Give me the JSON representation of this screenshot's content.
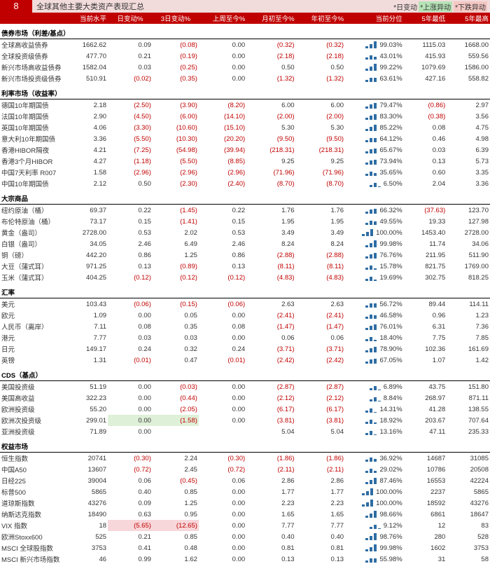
{
  "block_number": "8",
  "title": "全球其他主要大类资产表现汇总",
  "legend": {
    "day": "*日变动",
    "up": "*上涨异动",
    "down": "*下跌异动"
  },
  "headers": [
    "当前水平",
    "日变动%",
    "3日变动%",
    "上周至今%",
    "月初至今%",
    "年初至今%",
    "当前分位",
    "5年最低",
    "5年最高"
  ],
  "spark_color": "#2e6da4",
  "sections": [
    {
      "name": "债券市场（利差/基点）",
      "rows": [
        {
          "n": "全球高收益债券",
          "v": [
            "1662.62",
            "0.09",
            "(0.08)",
            "0.00",
            "(0.32)",
            "(0.32)",
            "99.03%",
            "1115.03",
            "1668.00"
          ],
          "move": ""
        },
        {
          "n": "全球投资级债券",
          "v": [
            "477.70",
            "0.21",
            "(0.19)",
            "0.00",
            "(2.18)",
            "(2.18)",
            "43.01%",
            "415.93",
            "559.56"
          ],
          "move": ""
        },
        {
          "n": "新兴市场高收益债券",
          "v": [
            "1582.04",
            "0.03",
            "(0.25)",
            "0.00",
            "0.50",
            "0.50",
            "99.22%",
            "1079.69",
            "1586.00"
          ],
          "move": ""
        },
        {
          "n": "新兴市场投资级债券",
          "v": [
            "510.91",
            "(0.02)",
            "(0.35)",
            "0.00",
            "(1.32)",
            "(1.32)",
            "63.61%",
            "427.16",
            "558.82"
          ],
          "move": ""
        }
      ]
    },
    {
      "name": "利率市场（收益率）",
      "rows": [
        {
          "n": "德国10年期国债",
          "v": [
            "2.18",
            "(2.50)",
            "(3.90)",
            "(8.20)",
            "6.00",
            "6.00",
            "79.47%",
            "(0.86)",
            "2.97"
          ],
          "move": ""
        },
        {
          "n": "法国10年期国债",
          "v": [
            "2.90",
            "(4.50)",
            "(6.00)",
            "(14.10)",
            "(2.00)",
            "(2.00)",
            "83.30%",
            "(0.38)",
            "3.56"
          ],
          "move": ""
        },
        {
          "n": "英国10年期国债",
          "v": [
            "4.06",
            "(3.30)",
            "(10.60)",
            "(15.10)",
            "5.30",
            "5.30",
            "85.22%",
            "0.08",
            "4.75"
          ],
          "move": ""
        },
        {
          "n": "意大利10年期国债",
          "v": [
            "3.36",
            "(5.50)",
            "(10.30)",
            "(20.20)",
            "(9.50)",
            "(9.50)",
            "64.12%",
            "0.46",
            "4.98"
          ],
          "move": ""
        },
        {
          "n": "香港HIBOR隔夜",
          "v": [
            "4.21",
            "(7.25)",
            "(54.98)",
            "(39.94)",
            "(218.31)",
            "(218.31)",
            "65.67%",
            "0.03",
            "6.39"
          ],
          "move": ""
        },
        {
          "n": "香港3个月HIBOR",
          "v": [
            "4.27",
            "(1.18)",
            "(5.50)",
            "(8.85)",
            "9.25",
            "9.25",
            "73.94%",
            "0.13",
            "5.73"
          ],
          "move": ""
        },
        {
          "n": "中国7天利率 R007",
          "v": [
            "1.58",
            "(2.96)",
            "(2.96)",
            "(2.96)",
            "(71.96)",
            "(71.96)",
            "35.65%",
            "0.60",
            "3.35"
          ],
          "move": ""
        },
        {
          "n": "中国10年期国债",
          "v": [
            "2.12",
            "0.50",
            "(2.30)",
            "(2.40)",
            "(8.70)",
            "(8.70)",
            "6.50%",
            "2.04",
            "3.36"
          ],
          "move": ""
        }
      ]
    },
    {
      "name": "大宗商品",
      "rows": [
        {
          "n": "纽约原油（桶）",
          "v": [
            "69.37",
            "0.22",
            "(1.45)",
            "0.22",
            "1.76",
            "1.76",
            "66.32%",
            "(37.63)",
            "123.70"
          ],
          "move": ""
        },
        {
          "n": "布伦特原油（桶）",
          "v": [
            "73.17",
            "0.15",
            "(1.41)",
            "0.15",
            "1.95",
            "1.95",
            "49.55%",
            "19.33",
            "127.98"
          ],
          "move": ""
        },
        {
          "n": "黄金（盎司）",
          "v": [
            "2728.00",
            "0.53",
            "2.02",
            "0.53",
            "3.49",
            "3.49",
            "100.00%",
            "1453.40",
            "2728.00"
          ],
          "move": ""
        },
        {
          "n": "白银（盎司）",
          "v": [
            "34.05",
            "2.46",
            "6.49",
            "2.46",
            "8.24",
            "8.24",
            "99.98%",
            "11.74",
            "34.06"
          ],
          "move": ""
        },
        {
          "n": "铜（磅）",
          "v": [
            "442.20",
            "0.86",
            "1.25",
            "0.86",
            "(2.88)",
            "(2.88)",
            "76.76%",
            "211.95",
            "511.90"
          ],
          "move": ""
        },
        {
          "n": "大豆（蒲式耳）",
          "v": [
            "971.25",
            "0.13",
            "(0.89)",
            "0.13",
            "(8.11)",
            "(8.11)",
            "15.78%",
            "821.75",
            "1769.00"
          ],
          "move": ""
        },
        {
          "n": "玉米（蒲式耳）",
          "v": [
            "404.25",
            "(0.12)",
            "(0.12)",
            "(0.12)",
            "(4.83)",
            "(4.83)",
            "19.69%",
            "302.75",
            "818.25"
          ],
          "move": ""
        }
      ]
    },
    {
      "name": "汇率",
      "rows": [
        {
          "n": "美元",
          "v": [
            "103.43",
            "(0.06)",
            "(0.15)",
            "(0.06)",
            "2.63",
            "2.63",
            "56.72%",
            "89.44",
            "114.11"
          ],
          "move": ""
        },
        {
          "n": "欧元",
          "v": [
            "1.09",
            "0.00",
            "0.05",
            "0.00",
            "(2.41)",
            "(2.41)",
            "46.58%",
            "0.96",
            "1.23"
          ],
          "move": ""
        },
        {
          "n": "人民币（离岸）",
          "v": [
            "7.11",
            "0.08",
            "0.35",
            "0.08",
            "(1.47)",
            "(1.47)",
            "76.01%",
            "6.31",
            "7.36"
          ],
          "move": ""
        },
        {
          "n": "港元",
          "v": [
            "7.77",
            "0.03",
            "0.03",
            "0.00",
            "0.06",
            "0.06",
            "18.40%",
            "7.75",
            "7.85"
          ],
          "move": ""
        },
        {
          "n": "日元",
          "v": [
            "149.17",
            "0.24",
            "0.32",
            "0.24",
            "(3.71)",
            "(3.71)",
            "78.90%",
            "102.36",
            "161.69"
          ],
          "move": ""
        },
        {
          "n": "英镑",
          "v": [
            "1.31",
            "(0.01)",
            "0.47",
            "(0.01)",
            "(2.42)",
            "(2.42)",
            "67.05%",
            "1.07",
            "1.42"
          ],
          "move": ""
        }
      ]
    },
    {
      "name": "CDS（基点）",
      "rows": [
        {
          "n": "美国投资级",
          "v": [
            "51.19",
            "0.00",
            "(0.03)",
            "0.00",
            "(2.87)",
            "(2.87)",
            "6.89%",
            "43.75",
            "151.80"
          ],
          "move": ""
        },
        {
          "n": "美国高收益",
          "v": [
            "322.23",
            "0.00",
            "(0.44)",
            "0.00",
            "(2.12)",
            "(2.12)",
            "8.84%",
            "268.97",
            "871.11"
          ],
          "move": ""
        },
        {
          "n": "欧洲投资级",
          "v": [
            "55.20",
            "0.00",
            "(2.05)",
            "0.00",
            "(6.17)",
            "(6.17)",
            "14.31%",
            "41.28",
            "138.55"
          ],
          "move": ""
        },
        {
          "n": "欧洲次投资级",
          "v": [
            "299.01",
            "0.00",
            "(1.58)",
            "0.00",
            "(3.81)",
            "(3.81)",
            "18.92%",
            "203.67",
            "707.64"
          ],
          "move": "up"
        },
        {
          "n": "亚洲投资级",
          "v": [
            "71.89",
            "0.00",
            "",
            "",
            "5.04",
            "5.04",
            "13.16%",
            "47.11",
            "235.33"
          ],
          "move": ""
        }
      ]
    },
    {
      "name": "权益市场",
      "rows": [
        {
          "n": "恒生指数",
          "v": [
            "20741",
            "(0.30)",
            "2.24",
            "(0.30)",
            "(1.86)",
            "(1.86)",
            "36.92%",
            "14687",
            "31085"
          ],
          "move": ""
        },
        {
          "n": "中国A50",
          "v": [
            "13607",
            "(0.72)",
            "2.45",
            "(0.72)",
            "(2.11)",
            "(2.11)",
            "29.02%",
            "10786",
            "20508"
          ],
          "move": ""
        },
        {
          "n": "日经225",
          "v": [
            "39004",
            "0.06",
            "(0.45)",
            "0.06",
            "2.86",
            "2.86",
            "87.46%",
            "16553",
            "42224"
          ],
          "move": ""
        },
        {
          "n": "标普500",
          "v": [
            "5865",
            "0.40",
            "0.85",
            "0.00",
            "1.77",
            "1.77",
            "100.00%",
            "2237",
            "5865"
          ],
          "move": ""
        },
        {
          "n": "道琼斯指数",
          "v": [
            "43276",
            "0.09",
            "1.25",
            "0.00",
            "2.23",
            "2.23",
            "100.00%",
            "18592",
            "43276"
          ],
          "move": ""
        },
        {
          "n": "纳斯达克指数",
          "v": [
            "18490",
            "0.63",
            "0.95",
            "0.00",
            "1.65",
            "1.65",
            "98.66%",
            "6861",
            "18647"
          ],
          "move": ""
        },
        {
          "n": "VIX 指数",
          "v": [
            "18",
            "(5.65)",
            "(12.65)",
            "0.00",
            "7.77",
            "7.77",
            "9.12%",
            "12",
            "83"
          ],
          "move": "dn"
        },
        {
          "n": "欧洲Stoxx600",
          "v": [
            "525",
            "0.21",
            "0.85",
            "0.00",
            "0.40",
            "0.40",
            "98.76%",
            "280",
            "528"
          ],
          "move": ""
        },
        {
          "n": "MSCI 全球股指数",
          "v": [
            "3753",
            "0.41",
            "0.48",
            "0.00",
            "0.81",
            "0.81",
            "99.98%",
            "1602",
            "3753"
          ],
          "move": ""
        },
        {
          "n": "MSCI 新兴市场指数",
          "v": [
            "46",
            "0.99",
            "1.62",
            "0.00",
            "0.13",
            "0.13",
            "55.98%",
            "31",
            "58"
          ],
          "move": ""
        }
      ]
    }
  ]
}
